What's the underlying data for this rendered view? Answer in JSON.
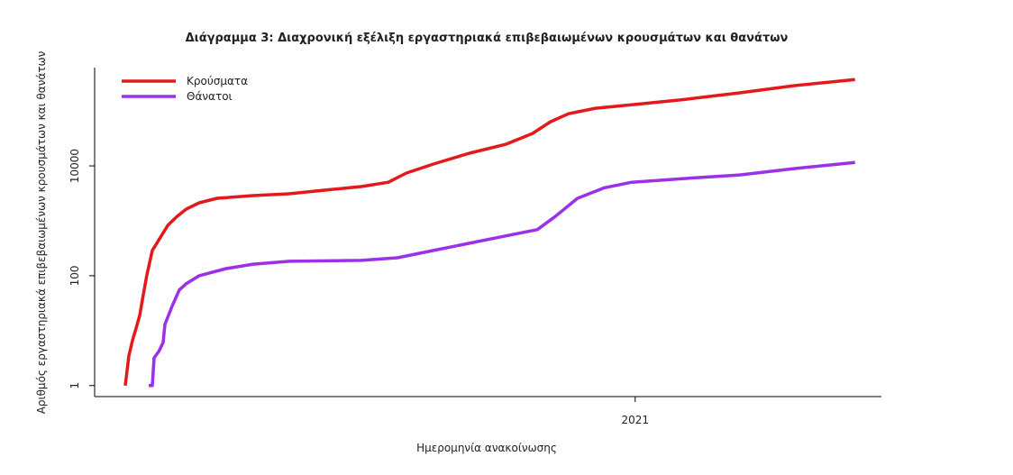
{
  "chart_data": {
    "type": "line",
    "title": "Διάγραμμα 3: Διαχρονική εξέλιξη εργαστηριακά επιβεβαιωμένων κρουσμάτων και θανάτων",
    "x_label": "Ημερομηνία ανακοίνωσης",
    "y_label": "Αριθμός εργαστηριακά επιβεβαιωμένων κρουσμάτων και θανάτων",
    "log_scale": true,
    "legend": "top-left",
    "xlim": [
      2020.1,
      2021.41
    ],
    "xticks": [
      2021
    ],
    "ylim": [
      0.63,
      616000
    ],
    "yticks": [
      1,
      100,
      10000
    ],
    "series": [
      {
        "name": "Κρούσματα",
        "color": "#e3191c",
        "x": [
          2020.151,
          2020.157,
          2020.163,
          2020.169,
          2020.175,
          2020.181,
          2020.187,
          2020.196,
          2020.207,
          2020.222,
          2020.237,
          2020.252,
          2020.274,
          2020.304,
          2020.364,
          2020.424,
          2020.484,
          2020.544,
          2020.589,
          2020.619,
          2020.664,
          2020.724,
          2020.784,
          2020.829,
          2020.859,
          2020.889,
          2020.934,
          2020.994,
          2021.084,
          2021.174,
          2021.264,
          2021.366
        ],
        "values": [
          1,
          3.5,
          6.6,
          11,
          19,
          45,
          104,
          288,
          450,
          830,
          1200,
          1620,
          2130,
          2570,
          2880,
          3100,
          3620,
          4200,
          5030,
          7400,
          10800,
          17000,
          24600,
          38900,
          63600,
          89000,
          112000,
          130000,
          163000,
          214000,
          288000,
          373000
        ]
      },
      {
        "name": "Θάνατοι",
        "color": "#9b30e8",
        "x": [
          2020.19,
          2020.196,
          2020.199,
          2020.207,
          2020.214,
          2020.217,
          2020.229,
          2020.241,
          2020.252,
          2020.274,
          2020.319,
          2020.364,
          2020.424,
          2020.544,
          2020.604,
          2020.664,
          2020.724,
          2020.784,
          2020.837,
          2020.867,
          2020.904,
          2020.949,
          2020.994,
          2021.084,
          2021.174,
          2021.264,
          2021.366
        ],
        "values": [
          1,
          1,
          3.2,
          4.2,
          6.1,
          13,
          28,
          55,
          71,
          100,
          135,
          162,
          183,
          190,
          212,
          288,
          390,
          530,
          690,
          1200,
          2570,
          4000,
          5030,
          5900,
          6830,
          8900,
          11500
        ]
      }
    ]
  }
}
